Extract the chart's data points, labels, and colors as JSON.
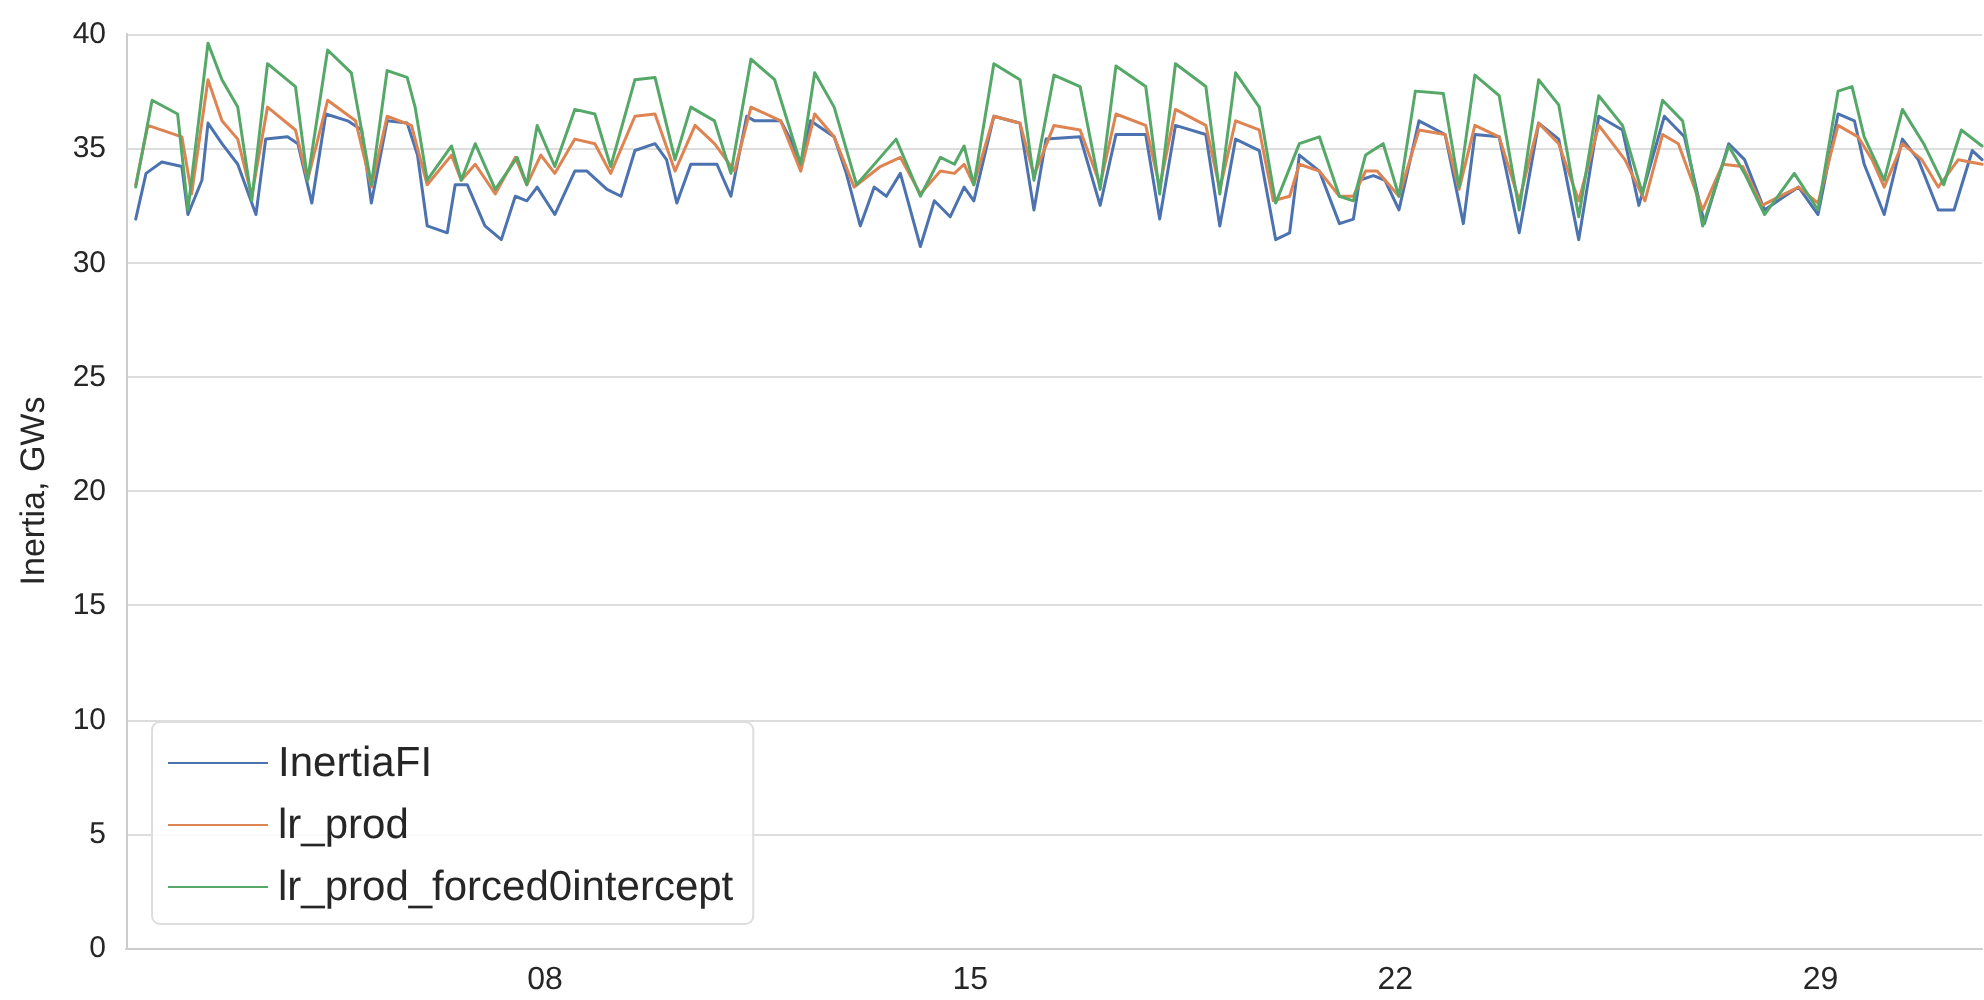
{
  "chart_data": {
    "type": "line",
    "ylabel": "Inertia, GWs",
    "xlim": [
      1.1,
      31.66
    ],
    "xticks": [
      {
        "value": 8,
        "label": "08"
      },
      {
        "value": 15,
        "label": "15"
      },
      {
        "value": 22,
        "label": "22"
      },
      {
        "value": 29,
        "label": "29"
      }
    ],
    "ylim": [
      0,
      40
    ],
    "yticks": [
      0,
      5,
      10,
      15,
      20,
      25,
      30,
      35,
      40
    ],
    "grid": "y",
    "legend": "bottom left",
    "marker": "none",
    "line_style": "solid",
    "series": [
      {
        "name": "InertiaFI",
        "color": "#4c72b0",
        "x": [
          1.26,
          1.43,
          1.69,
          2.02,
          2.12,
          2.35,
          2.45,
          2.68,
          2.94,
          3.24,
          3.4,
          3.76,
          3.93,
          4.16,
          4.39,
          4.75,
          4.98,
          5.14,
          5.4,
          5.73,
          5.9,
          6.06,
          6.39,
          6.52,
          6.72,
          7.01,
          7.28,
          7.51,
          7.7,
          7.87,
          8.16,
          8.49,
          8.69,
          9.02,
          9.25,
          9.48,
          9.81,
          10.0,
          10.17,
          10.4,
          10.83,
          11.06,
          11.32,
          11.45,
          11.88,
          12.04,
          12.21,
          12.37,
          12.76,
          12.96,
          13.19,
          13.42,
          13.62,
          13.85,
          14.18,
          14.41,
          14.67,
          14.9,
          15.06,
          15.39,
          15.82,
          16.05,
          16.25,
          16.81,
          17.14,
          17.4,
          17.89,
          18.12,
          18.38,
          18.88,
          19.11,
          19.37,
          19.76,
          20.03,
          20.26,
          20.42,
          20.75,
          21.08,
          21.31,
          21.41,
          21.64,
          21.83,
          22.06,
          22.39,
          22.82,
          23.12,
          23.31,
          23.71,
          24.04,
          24.36,
          24.69,
          25.02,
          25.35,
          25.74,
          26.01,
          26.43,
          26.76,
          27.09,
          27.49,
          27.75,
          28.08,
          28.41,
          28.64,
          28.96,
          29.29,
          29.56,
          29.72,
          30.05,
          30.35,
          30.61,
          30.94,
          31.2,
          31.5,
          31.66
        ],
        "values": [
          31.9,
          33.9,
          34.4,
          34.2,
          32.1,
          33.6,
          36.1,
          35.2,
          34.3,
          32.1,
          35.4,
          35.5,
          35.2,
          32.6,
          36.5,
          36.2,
          35.8,
          32.6,
          36.2,
          36.1,
          34.7,
          31.6,
          31.3,
          33.4,
          33.4,
          31.6,
          31.0,
          32.9,
          32.7,
          33.3,
          32.1,
          34.0,
          34.0,
          33.2,
          32.9,
          34.9,
          35.2,
          34.5,
          32.6,
          34.3,
          34.3,
          32.9,
          36.4,
          36.2,
          36.2,
          35.4,
          34.2,
          36.2,
          35.5,
          33.9,
          31.6,
          33.3,
          32.9,
          33.9,
          30.7,
          32.7,
          32.0,
          33.3,
          32.7,
          36.4,
          36.1,
          32.3,
          35.4,
          35.5,
          32.5,
          35.6,
          35.6,
          31.9,
          36.0,
          35.6,
          31.6,
          35.4,
          34.9,
          31.0,
          31.3,
          34.7,
          34.0,
          31.7,
          31.9,
          33.6,
          33.8,
          33.6,
          32.3,
          36.2,
          35.6,
          31.7,
          35.6,
          35.5,
          31.3,
          36.1,
          35.4,
          31.0,
          36.4,
          35.8,
          32.5,
          36.4,
          35.5,
          31.7,
          35.2,
          34.5,
          32.3,
          32.9,
          33.3,
          32.1,
          36.5,
          36.2,
          34.3,
          32.1,
          35.4,
          34.5,
          32.3,
          32.3,
          34.9,
          34.5
        ]
      },
      {
        "name": "lr_prod",
        "color": "#dd8452",
        "x": [
          1.26,
          1.46,
          2.02,
          2.18,
          2.45,
          2.68,
          2.94,
          3.17,
          3.43,
          3.89,
          4.09,
          4.42,
          4.88,
          5.14,
          5.4,
          5.8,
          6.06,
          6.46,
          6.62,
          6.85,
          7.18,
          7.51,
          7.7,
          7.93,
          8.16,
          8.49,
          8.82,
          9.08,
          9.48,
          9.81,
          10.14,
          10.47,
          10.79,
          11.12,
          11.39,
          11.88,
          12.21,
          12.44,
          12.76,
          13.09,
          13.52,
          13.85,
          14.18,
          14.51,
          14.74,
          14.9,
          15.06,
          15.39,
          15.82,
          16.05,
          16.38,
          16.81,
          17.14,
          17.4,
          17.89,
          18.12,
          18.38,
          18.88,
          19.11,
          19.37,
          19.76,
          19.99,
          20.26,
          20.42,
          20.75,
          21.08,
          21.31,
          21.51,
          21.7,
          22.06,
          22.39,
          22.82,
          23.05,
          23.31,
          23.71,
          24.04,
          24.36,
          24.69,
          25.02,
          25.35,
          25.78,
          26.11,
          26.4,
          26.66,
          27.06,
          27.39,
          27.72,
          28.04,
          28.41,
          28.64,
          28.96,
          29.29,
          29.62,
          29.85,
          30.05,
          30.35,
          30.67,
          30.94,
          31.27,
          31.66
        ],
        "values": [
          33.4,
          36.0,
          35.5,
          33.0,
          38.0,
          36.2,
          35.4,
          32.9,
          36.8,
          35.8,
          33.6,
          37.1,
          36.2,
          33.3,
          36.4,
          36.0,
          33.4,
          34.7,
          33.6,
          34.3,
          33.0,
          34.6,
          33.4,
          34.7,
          33.9,
          35.4,
          35.2,
          33.9,
          36.4,
          36.5,
          34.0,
          36.0,
          35.2,
          34.0,
          36.8,
          36.2,
          34.0,
          36.5,
          35.5,
          33.3,
          34.2,
          34.6,
          33.0,
          34.0,
          33.9,
          34.3,
          33.4,
          36.4,
          36.1,
          33.8,
          36.0,
          35.8,
          33.4,
          36.5,
          36.0,
          33.3,
          36.7,
          36.0,
          33.2,
          36.2,
          35.8,
          32.7,
          32.9,
          34.3,
          34.0,
          32.9,
          32.9,
          34.0,
          34.0,
          32.9,
          35.8,
          35.6,
          33.2,
          36.0,
          35.5,
          32.7,
          36.1,
          35.2,
          32.7,
          36.0,
          34.5,
          32.7,
          35.6,
          35.2,
          32.3,
          34.3,
          34.2,
          32.5,
          33.0,
          33.3,
          32.6,
          36.0,
          35.5,
          34.5,
          33.3,
          35.2,
          34.5,
          33.3,
          34.5,
          34.3
        ]
      },
      {
        "name": "lr_prod_forced0intercept",
        "color": "#55a868",
        "x": [
          1.26,
          1.53,
          1.95,
          2.12,
          2.45,
          2.68,
          2.94,
          3.17,
          3.43,
          3.89,
          4.09,
          4.42,
          4.81,
          5.14,
          5.4,
          5.73,
          5.86,
          6.06,
          6.46,
          6.62,
          6.85,
          7.18,
          7.54,
          7.7,
          7.87,
          8.16,
          8.49,
          8.82,
          9.08,
          9.48,
          9.81,
          10.14,
          10.4,
          10.79,
          11.06,
          11.39,
          11.78,
          12.21,
          12.44,
          12.76,
          13.13,
          13.52,
          13.78,
          14.18,
          14.51,
          14.74,
          14.9,
          15.06,
          15.39,
          15.82,
          16.05,
          16.38,
          16.81,
          17.14,
          17.4,
          17.89,
          18.12,
          18.38,
          18.88,
          19.11,
          19.37,
          19.76,
          20.03,
          20.42,
          20.75,
          21.08,
          21.31,
          21.51,
          21.8,
          22.06,
          22.33,
          22.79,
          23.05,
          23.31,
          23.71,
          24.04,
          24.36,
          24.69,
          25.02,
          25.35,
          25.74,
          26.07,
          26.4,
          26.73,
          27.06,
          27.49,
          27.75,
          28.08,
          28.57,
          28.96,
          29.29,
          29.52,
          29.72,
          30.05,
          30.35,
          30.7,
          31.03,
          31.32,
          31.66
        ],
        "values": [
          33.3,
          37.1,
          36.5,
          32.3,
          39.6,
          38.0,
          36.8,
          32.7,
          38.7,
          37.7,
          33.6,
          39.3,
          38.3,
          33.4,
          38.4,
          38.1,
          36.8,
          33.6,
          35.1,
          33.6,
          35.2,
          33.2,
          34.6,
          33.4,
          36.0,
          34.2,
          36.7,
          36.5,
          34.2,
          38.0,
          38.1,
          34.5,
          36.8,
          36.2,
          33.9,
          38.9,
          38.0,
          34.3,
          38.3,
          36.8,
          33.4,
          34.6,
          35.4,
          32.9,
          34.6,
          34.3,
          35.1,
          33.4,
          38.7,
          38.0,
          33.6,
          38.2,
          37.7,
          33.2,
          38.6,
          37.7,
          33.0,
          38.7,
          37.7,
          33.0,
          38.3,
          36.8,
          32.6,
          35.2,
          35.5,
          32.9,
          32.7,
          34.7,
          35.2,
          32.9,
          37.5,
          37.4,
          33.3,
          38.2,
          37.3,
          32.3,
          38.0,
          36.9,
          32.0,
          37.3,
          36.0,
          33.0,
          37.1,
          36.2,
          31.6,
          35.1,
          33.9,
          32.1,
          33.9,
          32.3,
          37.5,
          37.7,
          35.5,
          33.6,
          36.7,
          35.2,
          33.4,
          35.8,
          35.1
        ]
      }
    ]
  }
}
